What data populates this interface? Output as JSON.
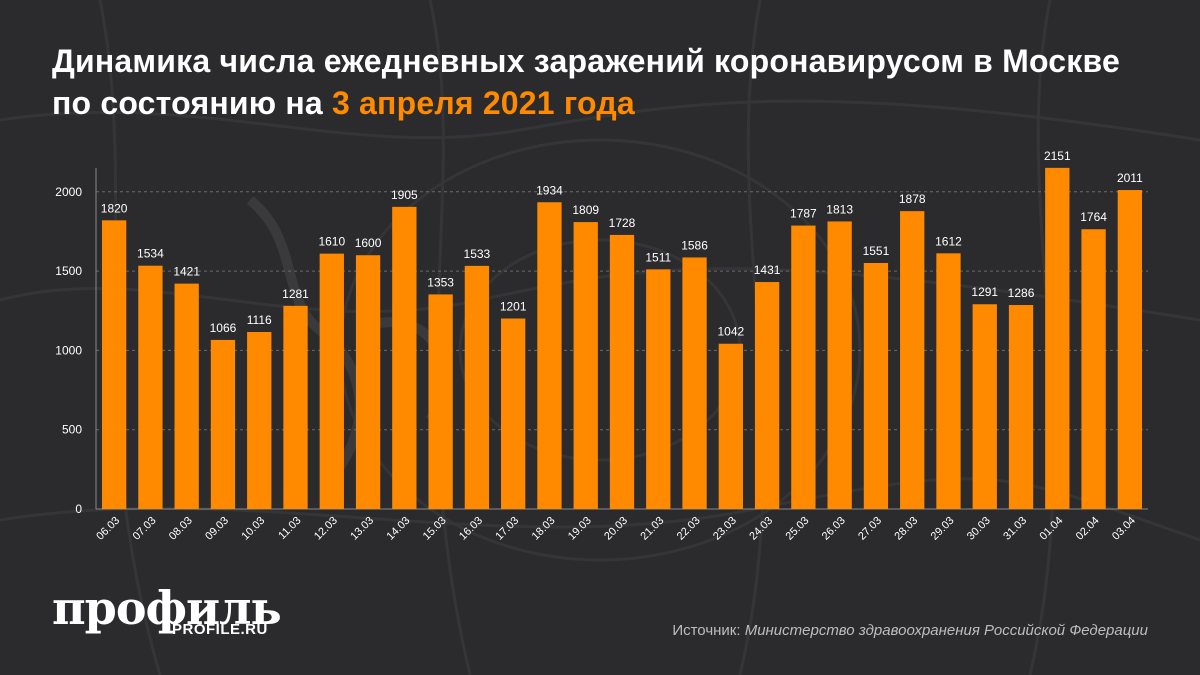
{
  "title": {
    "main": "Динамика числа ежедневных заражений коронавирусом в Москве по состоянию на",
    "highlight": "3 апреля 2021 года"
  },
  "logo": {
    "main": "профиль",
    "sub": "PROFILE.RU"
  },
  "source": {
    "label": "Источник:",
    "name": "Министерство здравоохранения Российской Федерации"
  },
  "colors": {
    "background": "#2b2b2d",
    "bar": "#ff8a00",
    "text": "#ffffff",
    "grid": "#6a6a6a"
  },
  "chart_data": {
    "type": "bar",
    "categories": [
      "06.03",
      "07.03",
      "08.03",
      "09.03",
      "10.03",
      "11.03",
      "12.03",
      "13.03",
      "14.03",
      "15.03",
      "16.03",
      "17.03",
      "18.03",
      "19.03",
      "20.03",
      "21.03",
      "22.03",
      "23.03",
      "24.03",
      "25.03",
      "26.03",
      "27.03",
      "28.03",
      "29.03",
      "30.03",
      "31.03",
      "01.04",
      "02.04",
      "03.04"
    ],
    "values": [
      1820,
      1534,
      1421,
      1066,
      1116,
      1281,
      1610,
      1600,
      1905,
      1353,
      1533,
      1201,
      1934,
      1809,
      1728,
      1511,
      1586,
      1042,
      1431,
      1787,
      1813,
      1551,
      1878,
      1612,
      1291,
      1286,
      2151,
      1764,
      2011
    ],
    "yticks": [
      0,
      500,
      1000,
      1500,
      2000
    ],
    "ylim": [
      0,
      2150
    ],
    "grid": true,
    "data_labels": true,
    "xlabel": "",
    "ylabel": ""
  }
}
